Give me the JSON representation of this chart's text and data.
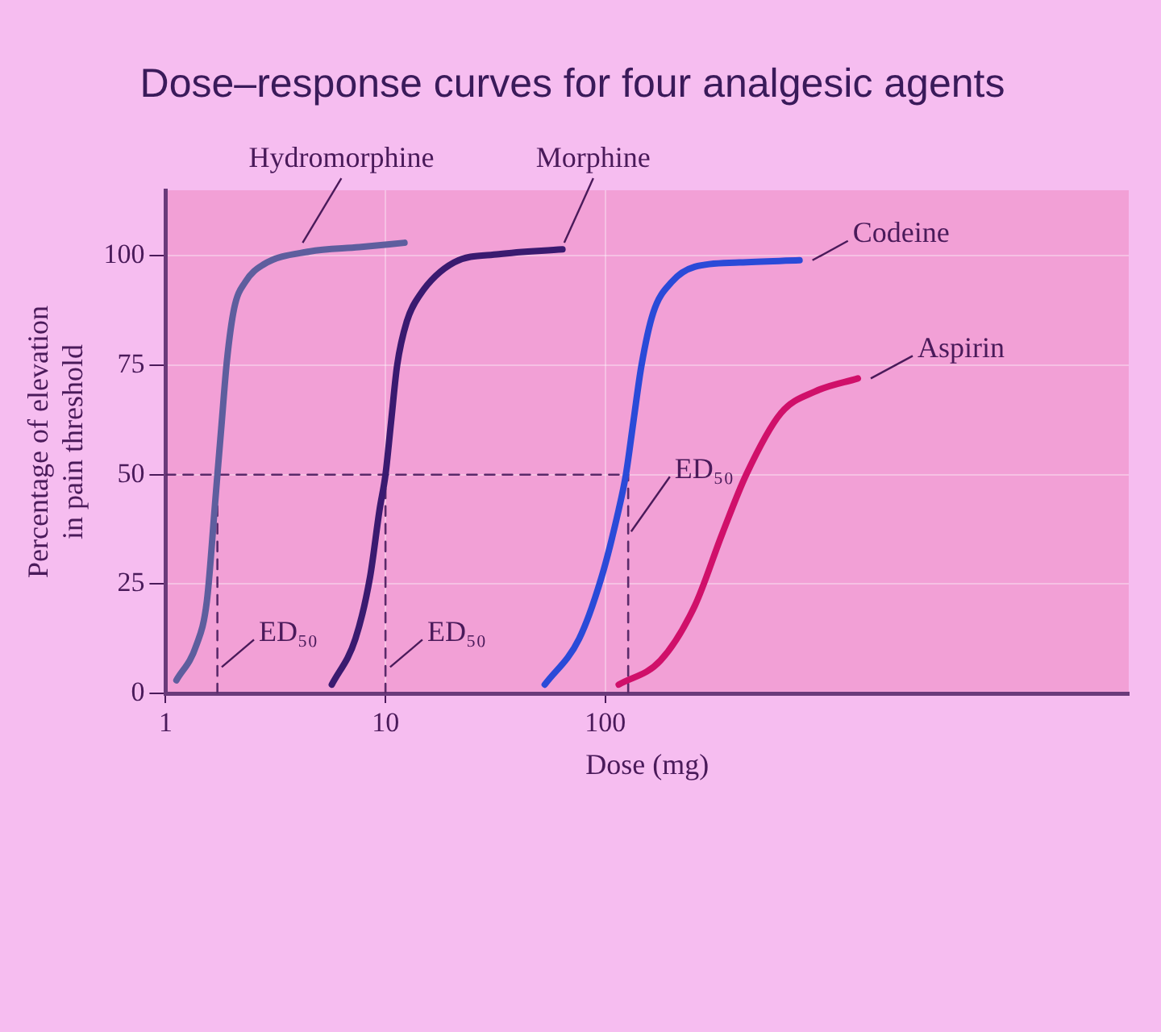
{
  "chart_data": {
    "type": "line",
    "title": "Dose–response curves for four analgesic agents",
    "xlabel": "Dose (mg)",
    "ylabel": "Percentage of elevation\nin pain threshold",
    "log": "x",
    "xlim": [
      1,
      24000
    ],
    "xticks": [
      1,
      10,
      100
    ],
    "ylim": [
      0,
      115
    ],
    "yticks": [
      0,
      25,
      50,
      75,
      100
    ],
    "grid": true,
    "legend": false,
    "marker": "none",
    "series": [
      {
        "color": "#5a2a6a",
        "line_style": "dashed",
        "x": [
          1,
          127
        ],
        "values": [
          50,
          50
        ]
      },
      {
        "color": "#5a2a6a",
        "line_style": "dashed",
        "x": [
          1.72,
          1.72
        ],
        "values": [
          0,
          50
        ]
      },
      {
        "color": "#5a2a6a",
        "line_style": "dashed",
        "x": [
          10,
          10
        ],
        "values": [
          0,
          50
        ]
      },
      {
        "color": "#5a2a6a",
        "line_style": "dashed",
        "x": [
          127,
          127
        ],
        "values": [
          0,
          50
        ]
      },
      {
        "color": "#5e5e9e",
        "line_style": "solid",
        "x": [
          1.12,
          1.38,
          1.54,
          1.67,
          1.72,
          1.8,
          1.9,
          2.05,
          2.3,
          2.78,
          4.5,
          7.6,
          12.2
        ],
        "values": [
          3,
          11,
          21,
          42,
          50,
          62,
          76,
          88,
          94,
          98,
          101,
          102,
          103
        ]
      },
      {
        "color": "#3a1a70",
        "line_style": "solid",
        "x": [
          5.7,
          7.3,
          8.5,
          9.4,
          10,
          10.6,
          11.3,
          12.5,
          14.3,
          20.5,
          32.8,
          63.8
        ],
        "values": [
          2,
          12.5,
          26.5,
          42,
          50,
          62,
          75,
          85,
          91,
          98.5,
          100.4,
          101.5
        ]
      },
      {
        "color": "#2a4ad8",
        "line_style": "solid",
        "x": [
          53,
          76,
          96,
          115,
          124,
          134,
          146,
          165,
          200,
          255,
          407,
          764
        ],
        "values": [
          2,
          12.5,
          26.5,
          42,
          50,
          62,
          75,
          87,
          94,
          97.5,
          98.5,
          99
        ]
      },
      {
        "color": "#d0106a",
        "line_style": "solid",
        "x": [
          115,
          178,
          255,
          340,
          437,
          627,
          898,
          1407
        ],
        "values": [
          2,
          7.5,
          20,
          36.5,
          50,
          64,
          69,
          72
        ]
      }
    ],
    "annotations": [
      {
        "text": "Hydromorphine",
        "x": 4.2,
        "y": 103
      },
      {
        "text": "Morphine",
        "x": 65,
        "y": 103
      },
      {
        "text": "Codeine",
        "x": 764,
        "y": 99
      },
      {
        "text": "Aspirin",
        "x": 1407,
        "y": 72
      },
      {
        "text": "ED₅₀",
        "x": 1.8,
        "y": 6
      },
      {
        "text": "ED₅₀",
        "x": 10.5,
        "y": 6
      },
      {
        "text": "ED₅₀",
        "x": 131,
        "y": 37
      }
    ]
  }
}
